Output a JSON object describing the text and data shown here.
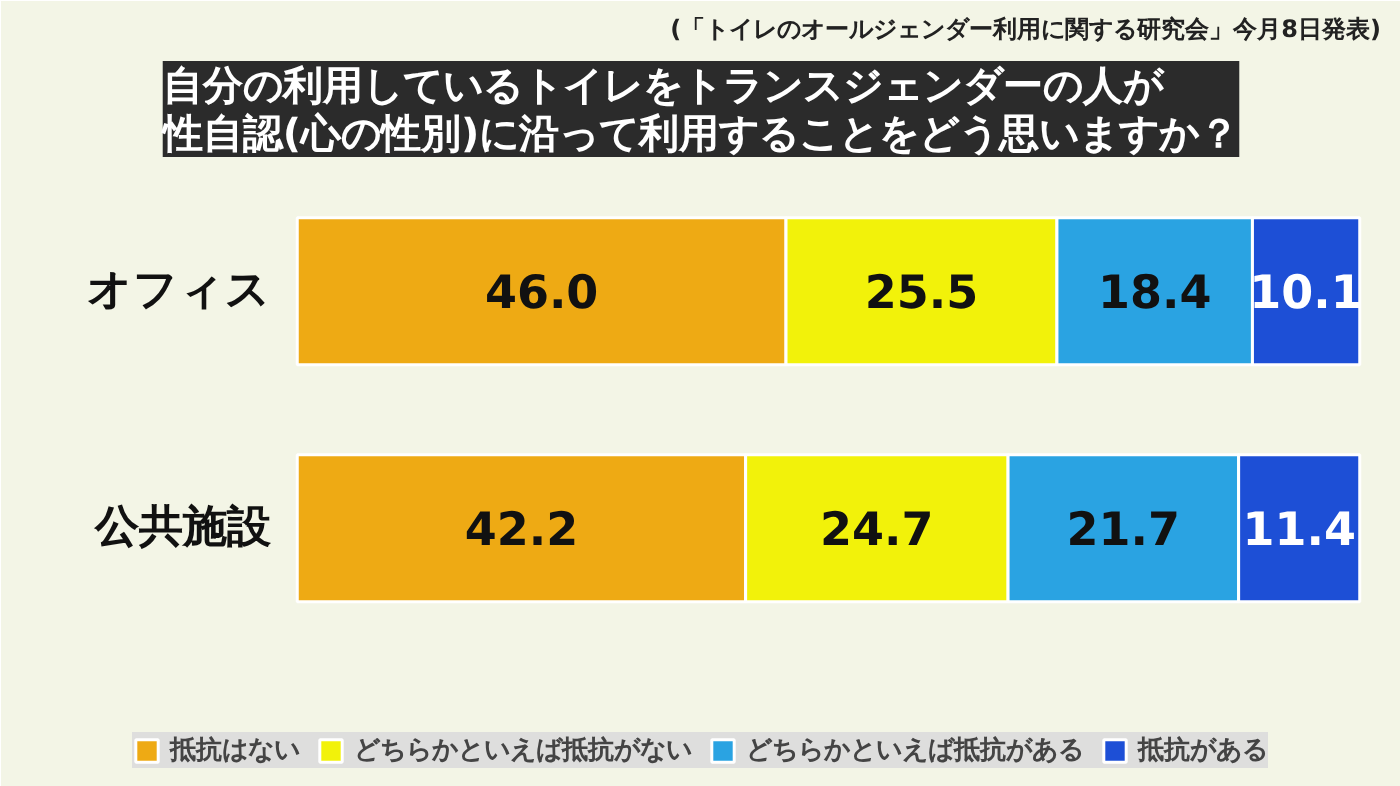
{
  "chart_data": {
    "type": "bar",
    "orientation": "horizontal",
    "stacked": true,
    "title": "自分の利用しているトイレをトランスジェンダーの人が性自認(心の性別)に沿って利用することをどう思いますか？",
    "subtitle": "(「トイレのオールジェンダー利用に関する研究会」今月8日発表)",
    "categories": [
      "オフィス",
      "公共施設"
    ],
    "series": [
      {
        "name": "抵抗はない",
        "color": "#eeaa14",
        "values": [
          46.0,
          42.2
        ],
        "value_labels": [
          "46.0",
          "42.2"
        ]
      },
      {
        "name": "どちらかといえば抵抗がない",
        "color": "#f2f20a",
        "values": [
          25.5,
          24.7
        ],
        "value_labels": [
          "25.5",
          "24.7"
        ]
      },
      {
        "name": "どちらかといえば抵抗がある",
        "color": "#2aa3e2",
        "values": [
          18.4,
          21.7
        ],
        "value_labels": [
          "18.4",
          "21.7"
        ]
      },
      {
        "name": "抵抗がある",
        "color": "#1d4fd6",
        "values": [
          10.1,
          11.4
        ],
        "value_labels": [
          "10.1",
          "11.4"
        ]
      }
    ],
    "legend": "bottom",
    "grid": false
  }
}
